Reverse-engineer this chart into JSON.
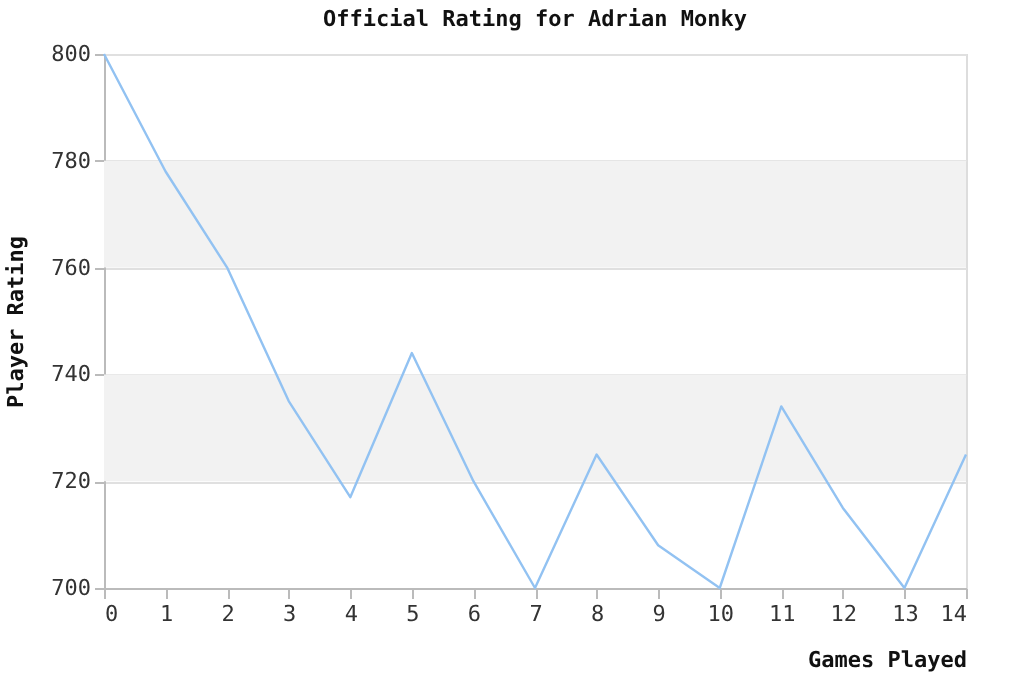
{
  "chart_data": {
    "type": "line",
    "title": "Official Rating for Adrian Monky",
    "xlabel": "Games Played",
    "ylabel": "Player Rating",
    "x": [
      0,
      1,
      2,
      3,
      4,
      5,
      6,
      7,
      8,
      9,
      10,
      11,
      12,
      13,
      14
    ],
    "series": [
      {
        "color": "#92c2f2",
        "values": [
          800,
          778,
          760,
          735,
          717,
          744,
          720,
          700,
          725,
          708,
          700,
          734,
          715,
          700,
          725
        ]
      }
    ],
    "xlim": [
      0,
      14
    ],
    "xticks": [
      0,
      1,
      2,
      3,
      4,
      5,
      6,
      7,
      8,
      9,
      10,
      11,
      12,
      13,
      14
    ],
    "ylim": [
      700,
      800
    ],
    "yticks": [
      700,
      720,
      740,
      760,
      780,
      800
    ],
    "bands": [
      {
        "axis": "y",
        "from": 720,
        "to": 740,
        "color": "#f2f2f2"
      },
      {
        "axis": "y",
        "from": 760,
        "to": 780,
        "color": "#f2f2f2"
      }
    ],
    "grid": "y",
    "marker": "none",
    "line_style": "solid"
  }
}
